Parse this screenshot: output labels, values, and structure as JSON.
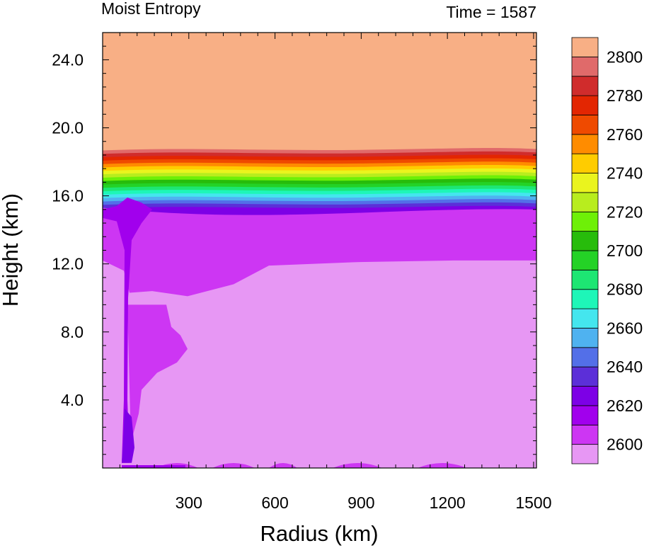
{
  "chart_data": {
    "type": "heatmap",
    "title": "Moist Entropy",
    "time_label": "Time = 1587",
    "xlabel": "Radius (km)",
    "ylabel": "Height (km)",
    "xlim": [
      0,
      1510
    ],
    "ylim": [
      0,
      25.6
    ],
    "x_ticks": [
      300,
      600,
      900,
      1200,
      1500
    ],
    "x_tick_labels": [
      "300",
      "600",
      "900",
      "1200",
      "1500"
    ],
    "y_ticks": [
      4,
      8,
      12,
      16,
      20,
      24
    ],
    "y_tick_labels": [
      "4.0",
      "8.0",
      "12.0",
      "16.0",
      "20.0",
      "24.0"
    ],
    "colorbar": {
      "levels": [
        2600,
        2610,
        2620,
        2630,
        2640,
        2650,
        2660,
        2670,
        2680,
        2690,
        2700,
        2710,
        2720,
        2730,
        2740,
        2750,
        2760,
        2770,
        2780,
        2790,
        2800
      ],
      "labels": [
        "2600",
        "2620",
        "2640",
        "2660",
        "2680",
        "2700",
        "2720",
        "2740",
        "2760",
        "2780",
        "2800"
      ],
      "colors": [
        "#e797f4",
        "#cd36f3",
        "#a100ed",
        "#7d00e6",
        "#5c2fd8",
        "#536fe8",
        "#4fb2f0",
        "#44e6ee",
        "#1ef6b8",
        "#1de673",
        "#24d226",
        "#27bc0b",
        "#6ef007",
        "#b8ed1e",
        "#eaf41e",
        "#ffcc00",
        "#ff8c00",
        "#ef4a00",
        "#e32602",
        "#d02c2c",
        "#e06a6a",
        "#f8af85"
      ]
    },
    "field_description_levels": {
      "upper_layer_above_km": 18.7,
      "gradient_band_km": [
        15.0,
        18.7
      ],
      "mid_layer_top_km": 12.2,
      "eye_radius_km": 80
    }
  }
}
